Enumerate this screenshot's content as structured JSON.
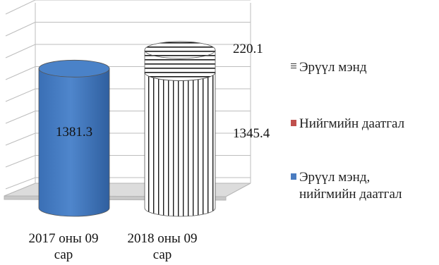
{
  "chart_data": {
    "type": "bar",
    "style": "3d-stacked-cylinder",
    "categories": [
      "2017 оны 09 сар",
      "2018 оны 09 сар"
    ],
    "series": [
      {
        "name": "Эрүүл мэнд, нийгмийн даатгал",
        "values": [
          1381.3,
          null
        ],
        "data_labels": [
          "1381.3",
          ""
        ],
        "color": "#4a7cc0"
      },
      {
        "name": "Нийгмийн даатгал",
        "values": [
          null,
          1345.4
        ],
        "data_labels": [
          "",
          "1345.4"
        ],
        "color": "#c0504d",
        "pattern": "vertical-stripes"
      },
      {
        "name": "Эрүүл мэнд",
        "values": [
          null,
          220.1
        ],
        "data_labels": [
          "",
          "220.1"
        ],
        "color": "#000000",
        "pattern": "horizontal-stripes"
      }
    ],
    "ylim": [
      0,
      1600
    ],
    "grid": true,
    "legend": "right"
  },
  "legend_items": [
    {
      "label": "Эрүүл мэнд",
      "swatch": "stripe"
    },
    {
      "label": "Нийгмийн даатгал",
      "swatch": "#c0504d"
    },
    {
      "label": "Эрүүл мэнд,\nнийгмийн даатгал",
      "swatch": "#4a7cc0"
    }
  ],
  "x_tick_labels": [
    "2017 оны 09\nсар",
    "2018 оны 09\nсар"
  ]
}
